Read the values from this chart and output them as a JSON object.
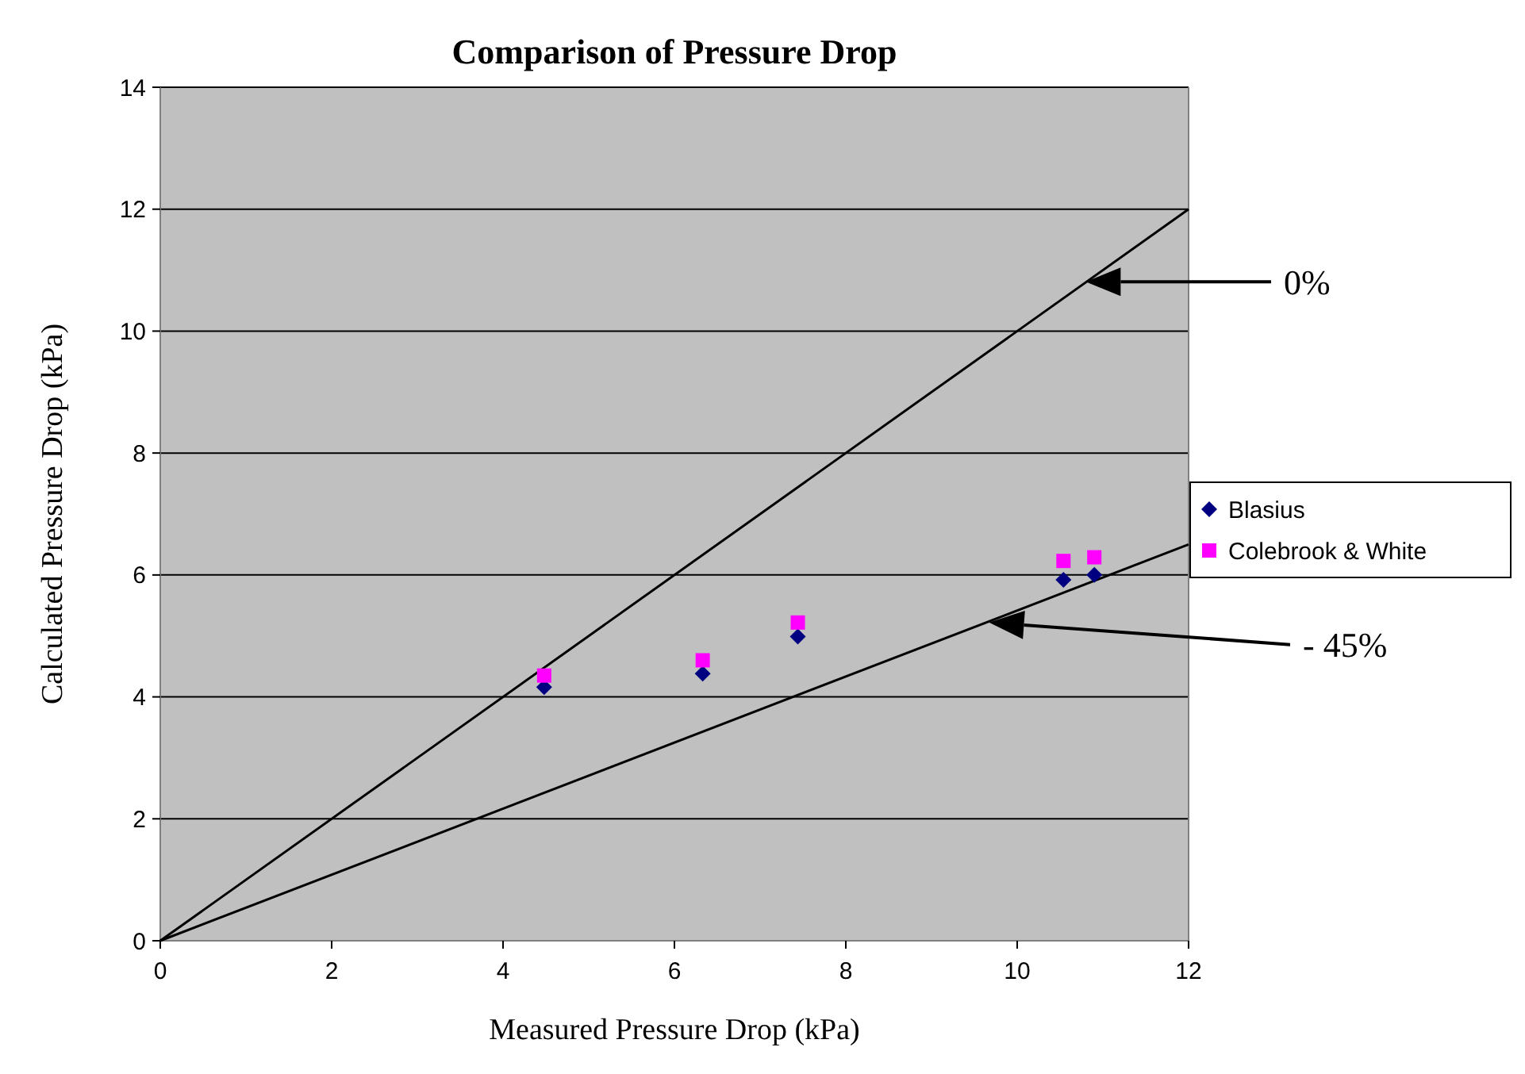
{
  "chart_data": {
    "type": "scatter",
    "title": "Comparison of Pressure Drop",
    "xlabel": "Measured Pressure Drop (kPa)",
    "ylabel": "Calculated Pressure Drop (kPa)",
    "xlim": [
      0,
      12
    ],
    "ylim": [
      0,
      14
    ],
    "xticks": [
      0,
      2,
      4,
      6,
      8,
      10,
      12
    ],
    "yticks": [
      0,
      2,
      4,
      6,
      8,
      10,
      12,
      14
    ],
    "grid": "y",
    "legend": "right",
    "series": [
      {
        "type": "line",
        "color": "#000000",
        "marker": "none",
        "x": [
          0,
          12
        ],
        "values": [
          0,
          12
        ]
      },
      {
        "type": "line",
        "color": "#000000",
        "marker": "none",
        "x": [
          0,
          12
        ],
        "values": [
          0,
          6.5
        ]
      },
      {
        "name": "Blasius",
        "color": "#000080",
        "marker": "diamond",
        "x": [
          4.48,
          6.33,
          7.44,
          10.54,
          10.9
        ],
        "values": [
          4.16,
          4.38,
          4.99,
          5.92,
          6.0
        ]
      },
      {
        "name": "Colebrook & White",
        "color": "#ff00ff",
        "marker": "square",
        "x": [
          4.48,
          6.33,
          7.44,
          10.54,
          10.9
        ],
        "values": [
          4.35,
          4.6,
          5.22,
          6.23,
          6.29
        ]
      }
    ],
    "annotations": [
      "0%",
      "- 45%"
    ]
  }
}
